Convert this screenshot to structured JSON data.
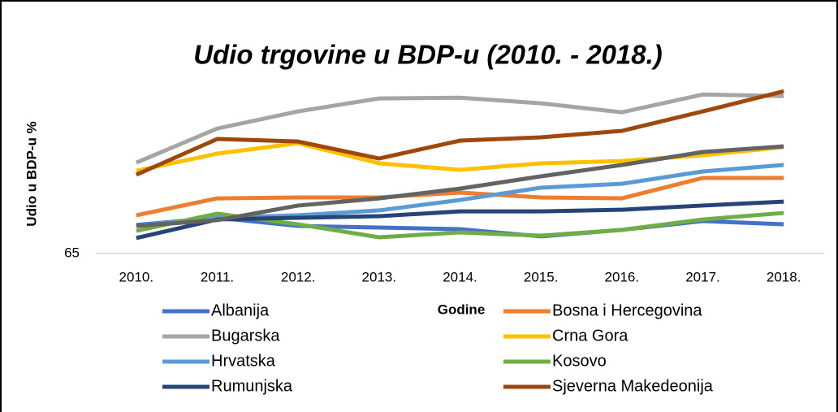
{
  "chart_data": {
    "type": "line",
    "title": "Udio trgovine u BDP-u (2010. - 2018.)",
    "y_label": "Udio u BDP-u %",
    "x_label": "Godine",
    "categories": [
      "2010.",
      "2011.",
      "2012.",
      "2013.",
      "2014.",
      "2015.",
      "2016.",
      "2017.",
      "2018."
    ],
    "ylim": [
      65,
      140
    ],
    "yticks": [
      65
    ],
    "series": [
      {
        "name": "Albanija",
        "color": "#4472c4",
        "values": [
          77.3,
          80.4,
          76.9,
          76.2,
          75.5,
          72.4,
          75.2,
          79.0,
          77.6
        ]
      },
      {
        "name": "Bosna i Hercegovina",
        "color": "#ed7d31",
        "values": [
          81.5,
          88.8,
          89.2,
          89.2,
          91.3,
          89.2,
          88.8,
          97.6,
          97.6
        ]
      },
      {
        "name": "Bugarska",
        "color": "#a5a5a5",
        "values": [
          104.2,
          118.9,
          126.3,
          131.9,
          132.2,
          129.8,
          125.9,
          133.6,
          132.9
        ]
      },
      {
        "name": "Crna Gora",
        "color": "#ffc000",
        "values": [
          100.7,
          108.1,
          112.6,
          103.9,
          101.1,
          103.9,
          104.9,
          107.4,
          110.9
        ]
      },
      {
        "name": "Hrvatska",
        "color": "#5b9bd5",
        "values": [
          76.9,
          80.4,
          81.5,
          83.6,
          88.1,
          93.4,
          95.1,
          100.4,
          103.2
        ]
      },
      {
        "name": "Kosovo",
        "color": "#70ad47",
        "values": [
          74.8,
          82.2,
          77.6,
          72.0,
          74.1,
          72.7,
          75.2,
          79.7,
          82.5
        ]
      },
      {
        "name": "Rumunjska",
        "color": "#264478",
        "values": [
          71.7,
          79.7,
          80.4,
          81.1,
          83.2,
          83.2,
          83.9,
          85.7,
          87.4
        ]
      },
      {
        "name": "Sjeverna Makedeonija",
        "color": "#9e480e",
        "values": [
          99.0,
          114.4,
          113.3,
          106.0,
          113.7,
          115.1,
          117.9,
          126.3,
          135.0
        ]
      },
      {
        "name": null,
        "color": "#636363",
        "values": [
          76.9,
          79.4,
          85.7,
          88.8,
          93.0,
          98.3,
          103.2,
          108.8,
          111.2
        ]
      }
    ]
  }
}
